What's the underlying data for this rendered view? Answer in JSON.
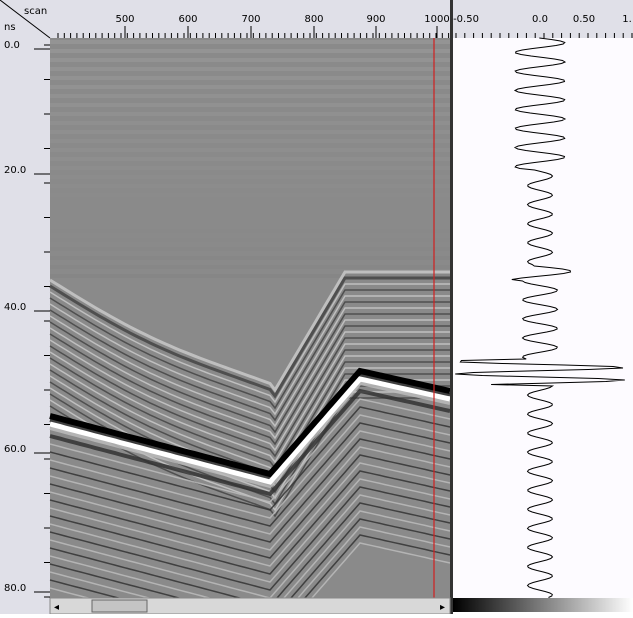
{
  "corner": {
    "top": "scan",
    "bottom": "ns"
  },
  "scan_axis": {
    "ticks": [
      "500",
      "600",
      "700",
      "800",
      "900",
      "1000"
    ]
  },
  "depth_axis": {
    "ticks": [
      "0.0",
      "20.0",
      "40.0",
      "60.0",
      "80.0"
    ]
  },
  "trace_axis": {
    "ticks": [
      "-0.50",
      "0.0",
      "0.50",
      "1."
    ]
  }
}
